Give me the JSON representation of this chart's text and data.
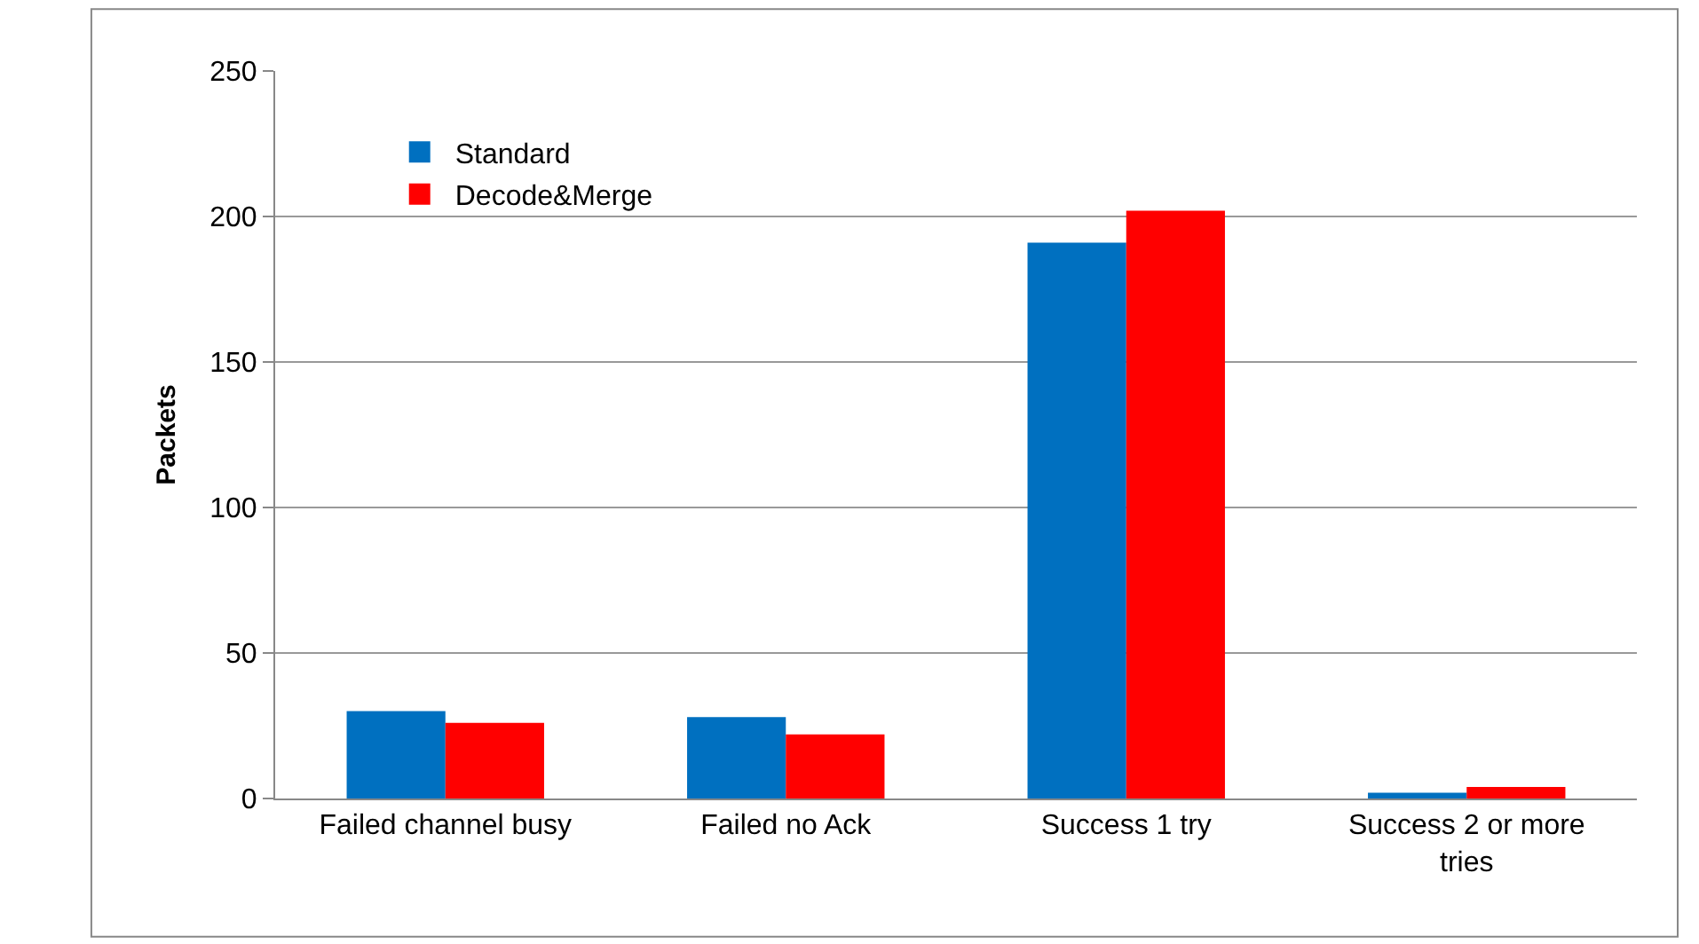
{
  "chart_data": {
    "type": "bar",
    "ylabel": "Packets",
    "categories": [
      "Failed channel busy",
      "Failed no Ack",
      "Success 1 try",
      "Success 2 or more tries"
    ],
    "series": [
      {
        "name": "Standard",
        "color": "#0070c0",
        "values": [
          30,
          28,
          191,
          2
        ]
      },
      {
        "name": "Decode&Merge",
        "color": "#ff0000",
        "values": [
          26,
          22,
          202,
          4
        ]
      }
    ],
    "ylim": [
      0,
      250
    ],
    "yticks": [
      0,
      50,
      100,
      150,
      200,
      250
    ],
    "grid": "y",
    "legend": "top left"
  }
}
